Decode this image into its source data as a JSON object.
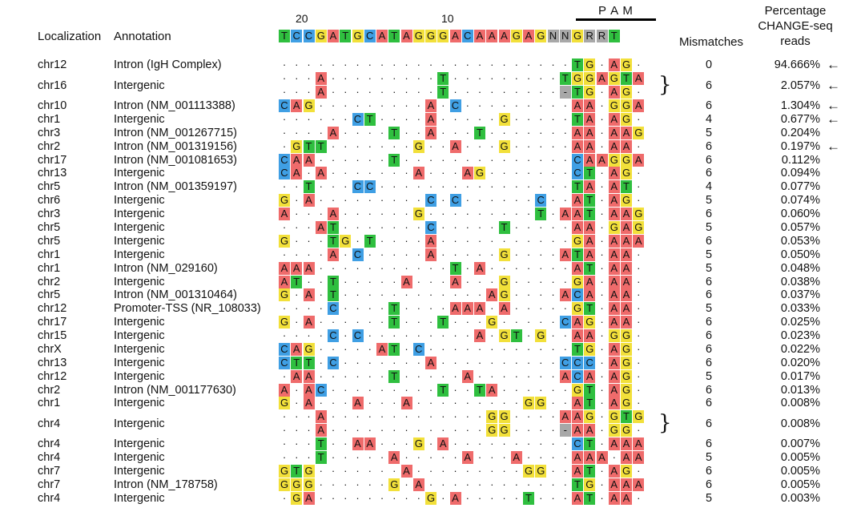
{
  "headers": {
    "localization": "Localization",
    "annotation": "Annotation",
    "pam": "P A M",
    "mismatches": "Mismatches",
    "percentage": [
      "Percentage",
      "CHANGE-seq",
      "reads"
    ],
    "pos_20": "20",
    "pos_10": "10"
  },
  "reference": "TCCGATGCATAGGGACAAAGAGNNGRRT",
  "colors": {
    "A": "#ef6b6b",
    "C": "#3f9fe4",
    "G": "#f2e03a",
    "T": "#2fbf3f",
    "N": "#a8a8a8",
    "R": "#a8a8a8",
    "-": "#a8a8a8"
  },
  "rows": [
    {
      "chr": "chr12",
      "ann": "Intron (IgH Complex)",
      "mm": "0",
      "pct": "94.666%",
      "arrow": true,
      "seqs": [
        "........................TG.AG."
      ]
    },
    {
      "chr": "chr16",
      "ann": "Intergenic",
      "mm": "6",
      "pct": "2.057%",
      "arrow": true,
      "brace": true,
      "seqs": [
        "...A.........T.........TGGAGTA",
        "...A.........T.........-TG.AG."
      ]
    },
    {
      "chr": "chr10",
      "ann": "Intron (NM_001113388)",
      "mm": "6",
      "pct": "1.304%",
      "arrow": true,
      "seqs": [
        "CAG.........A.C.........AA.GGA"
      ]
    },
    {
      "chr": "chr1",
      "ann": "Intergenic",
      "mm": "4",
      "pct": "0.677%",
      "arrow": true,
      "seqs": [
        "......CT....A.....G.....TA.AG."
      ]
    },
    {
      "chr": "chr3",
      "ann": "Intron (NM_001267715)",
      "mm": "5",
      "pct": "0.204%",
      "arrow": false,
      "seqs": [
        "....A....T..A...T.......AA.AAG"
      ]
    },
    {
      "chr": "chr2",
      "ann": "Intron (NM_001319156)",
      "mm": "6",
      "pct": "0.197%",
      "arrow": true,
      "seqs": [
        ".GTT.......G..A...G.....AA.AA."
      ]
    },
    {
      "chr": "chr17",
      "ann": "Intron (NM_001081653)",
      "mm": "6",
      "pct": "0.112%",
      "arrow": false,
      "seqs": [
        "CAA......T..............CAAGGA"
      ]
    },
    {
      "chr": "chr13",
      "ann": "Intergenic",
      "mm": "6",
      "pct": "0.094%",
      "arrow": false,
      "seqs": [
        "CA.A.......A...AG.......CT.AG."
      ]
    },
    {
      "chr": "chr5",
      "ann": "Intron (NM_001359197)",
      "mm": "4",
      "pct": "0.077%",
      "arrow": false,
      "seqs": [
        "..T...CC................TA.AT."
      ]
    },
    {
      "chr": "chr6",
      "ann": "Intergenic",
      "mm": "5",
      "pct": "0.074%",
      "arrow": false,
      "seqs": [
        "G.A.........C.C......C..AT.AG."
      ]
    },
    {
      "chr": "chr3",
      "ann": "Intergenic",
      "mm": "6",
      "pct": "0.060%",
      "arrow": false,
      "seqs": [
        "A...A......G.........T.AAT.AAG"
      ]
    },
    {
      "chr": "chr5",
      "ann": "Intergenic",
      "mm": "5",
      "pct": "0.057%",
      "arrow": false,
      "seqs": [
        "...AT.......C.....T.....AA.GAG"
      ]
    },
    {
      "chr": "chr5",
      "ann": "Intergenic",
      "mm": "6",
      "pct": "0.053%",
      "arrow": false,
      "seqs": [
        "G...TG.T....A...........GA.AAA"
      ]
    },
    {
      "chr": "chr1",
      "ann": "Intergenic",
      "mm": "5",
      "pct": "0.050%",
      "arrow": false,
      "seqs": [
        "....A.C.....A.....G....ATA.AA."
      ]
    },
    {
      "chr": "chr1",
      "ann": "Intron (NM_029160)",
      "mm": "5",
      "pct": "0.048%",
      "arrow": false,
      "seqs": [
        "AAA...........T.A.......AT.AA."
      ]
    },
    {
      "chr": "chr2",
      "ann": "Intergenic",
      "mm": "6",
      "pct": "0.038%",
      "arrow": false,
      "seqs": [
        "AT..T.....A...A...G.....GA.AA."
      ]
    },
    {
      "chr": "chr5",
      "ann": "Intron (NM_001310464)",
      "mm": "6",
      "pct": "0.037%",
      "arrow": false,
      "seqs": [
        "G.A.T............AG....ACA.AA."
      ]
    },
    {
      "chr": "chr12",
      "ann": "Promoter-TSS (NR_108033)",
      "mm": "5",
      "pct": "0.033%",
      "arrow": false,
      "seqs": [
        "....C....T....AAA.A.....GT.AA."
      ]
    },
    {
      "chr": "chr17",
      "ann": "Intergenic",
      "mm": "6",
      "pct": "0.025%",
      "arrow": false,
      "seqs": [
        "G.A......T...T...G.....CAG.AA."
      ]
    },
    {
      "chr": "chr15",
      "ann": "Intergenic",
      "mm": "6",
      "pct": "0.023%",
      "arrow": false,
      "seqs": [
        "....C.C.........A.GT.G..AA.GG."
      ]
    },
    {
      "chrX": "",
      "chr": "chrX",
      "ann": "Intergenic",
      "mm": "6",
      "pct": "0.022%",
      "arrow": false,
      "seqs": [
        "CAG.....AT.C............TG.AG."
      ]
    },
    {
      "chr": "chr13",
      "ann": "Intergenic",
      "mm": "6",
      "pct": "0.020%",
      "arrow": false,
      "seqs": [
        "CTT.C.......A..........CCC.AG."
      ]
    },
    {
      "chr": "chr12",
      "ann": "Intergenic",
      "mm": "5",
      "pct": "0.017%",
      "arrow": false,
      "seqs": [
        ".AA......T.....A.......ACA.AG."
      ]
    },
    {
      "chr": "chr2",
      "ann": "Intron (NM_001177630)",
      "mm": "6",
      "pct": "0.013%",
      "arrow": false,
      "seqs": [
        "A.AC.........T..TA......GT.AG."
      ]
    },
    {
      "chr": "chr1",
      "ann": "Intergenic",
      "mm": "6",
      "pct": "0.008%",
      "arrow": false,
      "seqs": [
        "G.A...A...A.........GG..AT.AG."
      ]
    },
    {
      "chr": "chr4",
      "ann": "Intergenic",
      "mm": "6",
      "pct": "0.008%",
      "arrow": false,
      "brace": true,
      "seqs": [
        "...A.............GG....AAG.GTG",
        "...A.............GG....-AA.GG."
      ]
    },
    {
      "chr": "chr4",
      "ann": "Intergenic",
      "mm": "6",
      "pct": "0.007%",
      "arrow": false,
      "seqs": [
        "...T..AA...G.A..........CT.AAA"
      ]
    },
    {
      "chr": "chr4",
      "ann": "Intergenic",
      "mm": "5",
      "pct": "0.005%",
      "arrow": false,
      "seqs": [
        "...T.....A.....A...A....AAA.AA"
      ]
    },
    {
      "chr": "chr7",
      "ann": "Intergenic",
      "mm": "6",
      "pct": "0.005%",
      "arrow": false,
      "seqs": [
        "GTG.......A.........GG..AT.AG."
      ]
    },
    {
      "chr": "chr7",
      "ann": "Intron (NM_178758)",
      "mm": "6",
      "pct": "0.005%",
      "arrow": false,
      "seqs": [
        "GGG......G.A............TG.AAA"
      ]
    },
    {
      "chr": "chr4",
      "ann": "Intergenic",
      "mm": "5",
      "pct": "0.003%",
      "arrow": false,
      "seqs": [
        ".GA.........G.A.....T...AT.AA."
      ]
    }
  ]
}
